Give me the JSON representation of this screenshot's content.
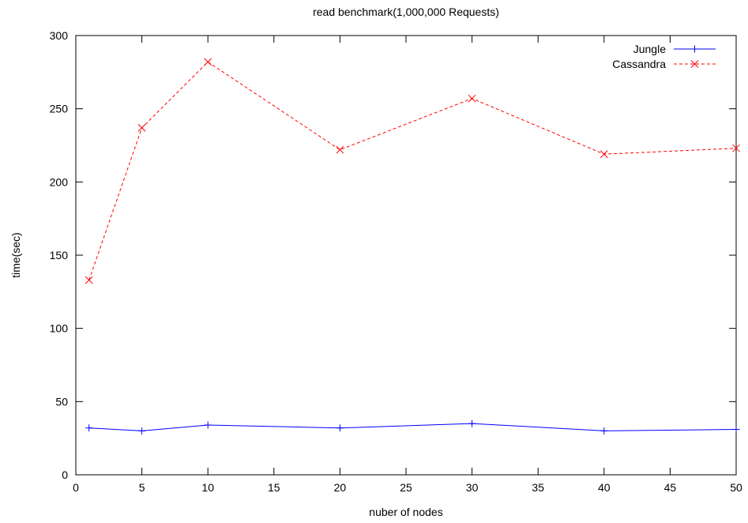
{
  "chart_data": {
    "type": "line",
    "title": "read benchmark(1,000,000 Requests)",
    "xlabel": "nuber of nodes",
    "ylabel": "time(sec)",
    "xlim": [
      0,
      50
    ],
    "ylim": [
      0,
      300
    ],
    "xticks": [
      0,
      5,
      10,
      15,
      20,
      25,
      30,
      35,
      40,
      45,
      50
    ],
    "yticks": [
      0,
      50,
      100,
      150,
      200,
      250,
      300
    ],
    "grid": false,
    "legend_position": "top-right",
    "series": [
      {
        "name": "Jungle",
        "color": "#0000ff",
        "line_style": "solid",
        "marker": "plus",
        "x": [
          1,
          5,
          10,
          20,
          30,
          40,
          50
        ],
        "y": [
          32,
          30,
          34,
          32,
          35,
          30,
          31
        ]
      },
      {
        "name": "Cassandra",
        "color": "#ff0000",
        "line_style": "dashed",
        "marker": "cross",
        "x": [
          1,
          5,
          10,
          20,
          30,
          40,
          50
        ],
        "y": [
          133,
          237,
          282,
          222,
          257,
          219,
          223
        ]
      }
    ]
  }
}
